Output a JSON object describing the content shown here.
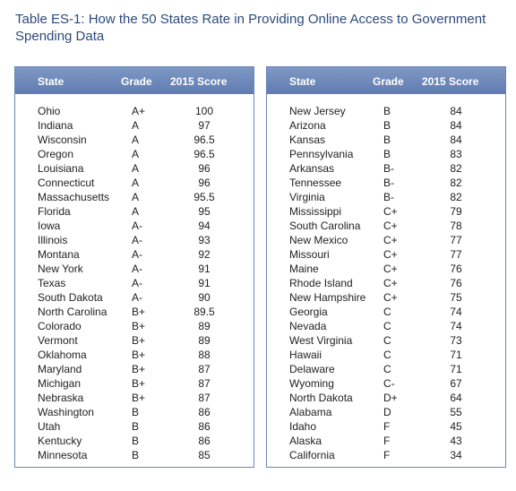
{
  "title": "Table ES-1: How the 50 States Rate in Providing Online Access to Government Spending Data",
  "headers": {
    "state": "State",
    "grade": "Grade",
    "score": "2015 Score"
  },
  "left_rows": [
    {
      "state": "Ohio",
      "grade": "A+",
      "score": "100"
    },
    {
      "state": "Indiana",
      "grade": "A",
      "score": "97"
    },
    {
      "state": "Wisconsin",
      "grade": "A",
      "score": "96.5"
    },
    {
      "state": "Oregon",
      "grade": "A",
      "score": "96.5"
    },
    {
      "state": "Louisiana",
      "grade": "A",
      "score": "96"
    },
    {
      "state": "Connecticut",
      "grade": "A",
      "score": "96"
    },
    {
      "state": "Massachusetts",
      "grade": "A",
      "score": "95.5"
    },
    {
      "state": "Florida",
      "grade": "A",
      "score": "95"
    },
    {
      "state": "Iowa",
      "grade": "A-",
      "score": "94"
    },
    {
      "state": "Illinois",
      "grade": "A-",
      "score": "93"
    },
    {
      "state": "Montana",
      "grade": "A-",
      "score": "92"
    },
    {
      "state": "New York",
      "grade": "A-",
      "score": "91"
    },
    {
      "state": "Texas",
      "grade": "A-",
      "score": "91"
    },
    {
      "state": "South Dakota",
      "grade": "A-",
      "score": "90"
    },
    {
      "state": "North Carolina",
      "grade": "B+",
      "score": "89.5"
    },
    {
      "state": "Colorado",
      "grade": "B+",
      "score": "89"
    },
    {
      "state": "Vermont",
      "grade": "B+",
      "score": "89"
    },
    {
      "state": "Oklahoma",
      "grade": "B+",
      "score": "88"
    },
    {
      "state": "Maryland",
      "grade": "B+",
      "score": "87"
    },
    {
      "state": "Michigan",
      "grade": "B+",
      "score": "87"
    },
    {
      "state": "Nebraska",
      "grade": "B+",
      "score": "87"
    },
    {
      "state": "Washington",
      "grade": "B",
      "score": "86"
    },
    {
      "state": "Utah",
      "grade": "B",
      "score": "86"
    },
    {
      "state": "Kentucky",
      "grade": "B",
      "score": "86"
    },
    {
      "state": "Minnesota",
      "grade": "B",
      "score": "85"
    }
  ],
  "right_rows": [
    {
      "state": "New Jersey",
      "grade": "B",
      "score": "84"
    },
    {
      "state": "Arizona",
      "grade": "B",
      "score": "84"
    },
    {
      "state": "Kansas",
      "grade": "B",
      "score": "84"
    },
    {
      "state": "Pennsylvania",
      "grade": "B",
      "score": "83"
    },
    {
      "state": "Arkansas",
      "grade": "B-",
      "score": "82"
    },
    {
      "state": "Tennessee",
      "grade": "B-",
      "score": "82"
    },
    {
      "state": "Virginia",
      "grade": "B-",
      "score": "82"
    },
    {
      "state": "Mississippi",
      "grade": "C+",
      "score": "79"
    },
    {
      "state": "South Carolina",
      "grade": "C+",
      "score": "78"
    },
    {
      "state": "New Mexico",
      "grade": "C+",
      "score": "77"
    },
    {
      "state": "Missouri",
      "grade": "C+",
      "score": "77"
    },
    {
      "state": "Maine",
      "grade": "C+",
      "score": "76"
    },
    {
      "state": "Rhode Island",
      "grade": "C+",
      "score": "76"
    },
    {
      "state": "New Hampshire",
      "grade": "C+",
      "score": "75"
    },
    {
      "state": "Georgia",
      "grade": "C",
      "score": "74"
    },
    {
      "state": "Nevada",
      "grade": "C",
      "score": "74"
    },
    {
      "state": "West Virginia",
      "grade": "C",
      "score": "73"
    },
    {
      "state": "Hawaii",
      "grade": "C",
      "score": "71"
    },
    {
      "state": "Delaware",
      "grade": "C",
      "score": "71"
    },
    {
      "state": "Wyoming",
      "grade": "C-",
      "score": "67"
    },
    {
      "state": "North Dakota",
      "grade": "D+",
      "score": "64"
    },
    {
      "state": "Alabama",
      "grade": "D",
      "score": "55"
    },
    {
      "state": "Idaho",
      "grade": "F",
      "score": "45"
    },
    {
      "state": "Alaska",
      "grade": "F",
      "score": "43"
    },
    {
      "state": "California",
      "grade": "F",
      "score": "34"
    }
  ]
}
